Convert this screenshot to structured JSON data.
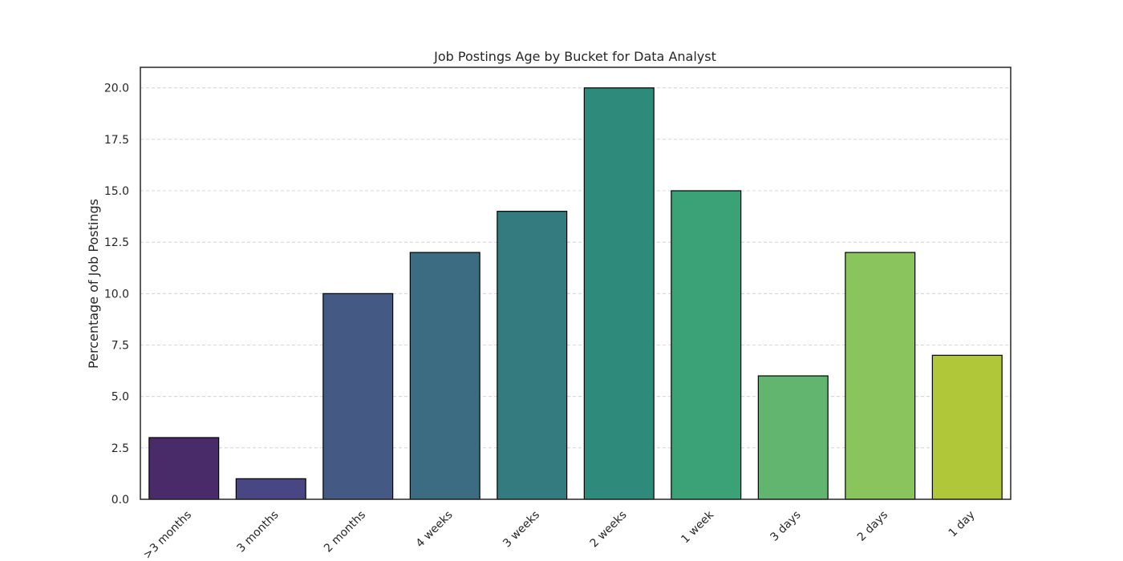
{
  "chart_data": {
    "type": "bar",
    "title": "Job Postings Age by Bucket for Data Analyst",
    "xlabel": "",
    "ylabel": "Percentage of Job Postings",
    "categories": [
      ">3 months",
      "3 months",
      "2 months",
      "4 weeks",
      "3 weeks",
      "2 weeks",
      "1 week",
      "3 days",
      "2 days",
      "1 day"
    ],
    "values": [
      3,
      1,
      10,
      12,
      14,
      20,
      15,
      6,
      12,
      7
    ],
    "ylim": [
      0,
      21
    ],
    "yticks": [
      "0.0",
      "2.5",
      "5.0",
      "7.5",
      "10.0",
      "12.5",
      "15.0",
      "17.5",
      "20.0"
    ],
    "grid": "horizontal dashed",
    "colors": [
      "#4a2b69",
      "#4a4683",
      "#445a84",
      "#3b6c82",
      "#337b7f",
      "#2e8b7b",
      "#3ba277",
      "#62b56f",
      "#8ac45c",
      "#b0c73a"
    ],
    "bar_edge_color": "#000000"
  }
}
